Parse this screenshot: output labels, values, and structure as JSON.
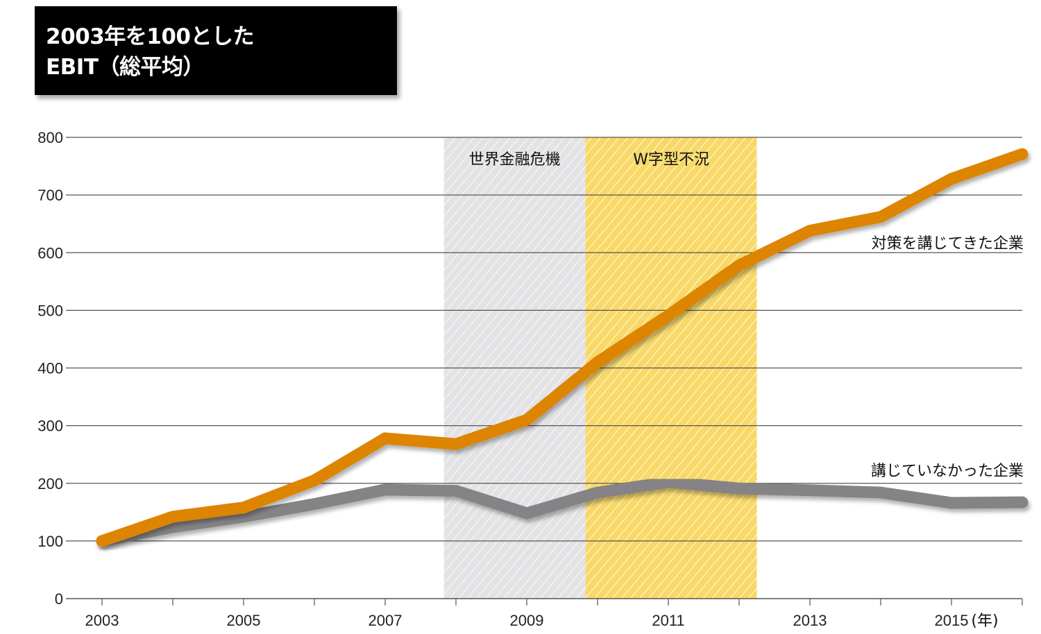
{
  "title": {
    "line1": "2003年を100とした",
    "line2": "EBIT（総平均）"
  },
  "chart_data": {
    "type": "line",
    "title": "2003年を100とした EBIT（総平均）",
    "xlabel": "(年)",
    "ylabel": "",
    "x": [
      2003,
      2004,
      2005,
      2006,
      2007,
      2008,
      2009,
      2010,
      2011,
      2012,
      2013,
      2014,
      2015,
      2016
    ],
    "xlim": [
      2003,
      2016
    ],
    "ylim": [
      0,
      800
    ],
    "yticks": [
      0,
      100,
      200,
      300,
      400,
      500,
      600,
      700,
      800
    ],
    "xtick_labels": [
      "2003",
      "2005",
      "2007",
      "2009",
      "2011",
      "2013",
      "2015"
    ],
    "xunit_label": "(年)",
    "grid": true,
    "series": [
      {
        "name": "対策を講じてきた企業",
        "color": "#dd8500",
        "values": [
          100,
          142,
          158,
          205,
          278,
          268,
          310,
          410,
          491,
          578,
          638,
          662,
          728,
          771
        ]
      },
      {
        "name": "講じていなかった企業",
        "color": "#858385",
        "values": [
          100,
          124,
          142,
          164,
          189,
          187,
          148,
          184,
          202,
          191,
          188,
          184,
          166,
          167
        ]
      }
    ],
    "bands": [
      {
        "label": "世界金融危機",
        "from": 2007.83,
        "to": 2009.83,
        "color": "#e3e3e5"
      },
      {
        "label": "W字型不況",
        "from": 2009.83,
        "to": 2012.25,
        "color": "#f8d866"
      }
    ]
  }
}
